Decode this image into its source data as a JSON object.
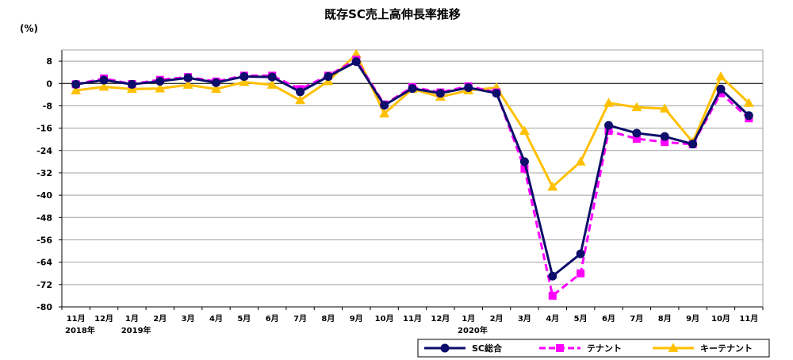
{
  "chart_data": {
    "type": "line",
    "title": "既存SC売上高伸長率推移",
    "ylabel": "(%)",
    "xlabel": "",
    "ylim": [
      -80,
      12
    ],
    "yticks": [
      8,
      0,
      -8,
      -16,
      -24,
      -32,
      -40,
      -48,
      -56,
      -64,
      -72,
      -80
    ],
    "grid": true,
    "legend_position": "bottom-right",
    "categories": [
      "11月",
      "12月",
      "1月",
      "2月",
      "3月",
      "4月",
      "5月",
      "6月",
      "7月",
      "8月",
      "9月",
      "10月",
      "11月",
      "12月",
      "1月",
      "2月",
      "3月",
      "4月",
      "5月",
      "6月",
      "7月",
      "8月",
      "9月",
      "10月",
      "11月"
    ],
    "year_labels": [
      {
        "index": 0,
        "text": "2018年"
      },
      {
        "index": 2,
        "text": "2019年"
      },
      {
        "index": 14,
        "text": "2020年"
      }
    ],
    "series": [
      {
        "name": "SC総合",
        "color": "#0d0d6b",
        "style": "solid",
        "marker": "circle",
        "values": [
          -0.3,
          1.2,
          -0.3,
          0.8,
          2.0,
          0.3,
          2.5,
          2.3,
          -3.0,
          2.5,
          7.8,
          -7.8,
          -1.8,
          -3.5,
          -1.5,
          -3.5,
          -28.0,
          -69.0,
          -61.0,
          -15.0,
          -17.8,
          -19.0,
          -21.7,
          -2.0,
          -11.5
        ]
      },
      {
        "name": "テナント",
        "color": "#ff00ff",
        "style": "dashed",
        "marker": "square",
        "values": [
          -0.3,
          1.8,
          -0.2,
          1.3,
          2.3,
          0.7,
          2.8,
          2.8,
          -2.0,
          2.8,
          8.5,
          -7.5,
          -1.3,
          -3.2,
          -1.0,
          -3.2,
          -30.5,
          -76.0,
          -68.0,
          -17.0,
          -19.8,
          -21.0,
          -21.8,
          -3.5,
          -12.5
        ]
      },
      {
        "name": "キーテナント",
        "color": "#ffc000",
        "style": "solid",
        "marker": "triangle",
        "values": [
          -2.5,
          -1.2,
          -2.0,
          -1.8,
          -0.5,
          -2.0,
          0.5,
          -0.5,
          -6.0,
          0.8,
          10.5,
          -10.8,
          -2.0,
          -4.8,
          -2.5,
          -1.5,
          -17.0,
          -37.0,
          -28.0,
          -7.0,
          -8.5,
          -9.0,
          -21.0,
          2.5,
          -7.0
        ]
      }
    ]
  }
}
